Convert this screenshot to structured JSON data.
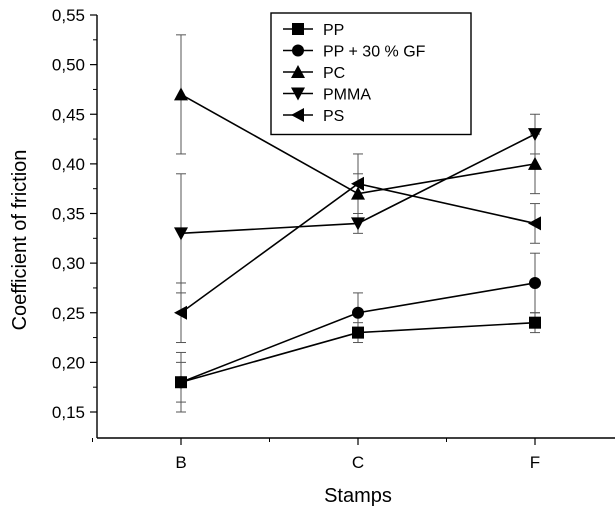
{
  "chart_data": {
    "type": "line",
    "title": "",
    "xlabel": "Stamps",
    "ylabel": "Coefficient of friction",
    "categories": [
      "B",
      "C",
      "F"
    ],
    "ylim": [
      0.15,
      0.55
    ],
    "yticks": [
      "0,15",
      "0,20",
      "0,25",
      "0,30",
      "0,35",
      "0,40",
      "0,45",
      "0,50",
      "0,55"
    ],
    "grid": false,
    "legend_position": "top-right",
    "series": [
      {
        "name": "PP",
        "marker": "square",
        "values": [
          0.18,
          0.23,
          0.24
        ],
        "errors": [
          0.03,
          0.01,
          0.01
        ]
      },
      {
        "name": "PP + 30 % GF",
        "marker": "circle",
        "values": [
          0.18,
          0.25,
          0.28
        ],
        "errors": [
          0.02,
          0.02,
          0.03
        ]
      },
      {
        "name": "PC",
        "marker": "triangle-up",
        "values": [
          0.47,
          0.37,
          0.4
        ],
        "errors": [
          0.06,
          0.02,
          0.03
        ]
      },
      {
        "name": "PMMA",
        "marker": "triangle-down",
        "values": [
          0.33,
          0.34,
          0.43
        ],
        "errors": [
          0.06,
          0.01,
          0.02
        ]
      },
      {
        "name": "PS",
        "marker": "triangle-left",
        "values": [
          0.25,
          0.38,
          0.34
        ],
        "errors": [
          0.03,
          0.03,
          0.02
        ]
      }
    ]
  }
}
